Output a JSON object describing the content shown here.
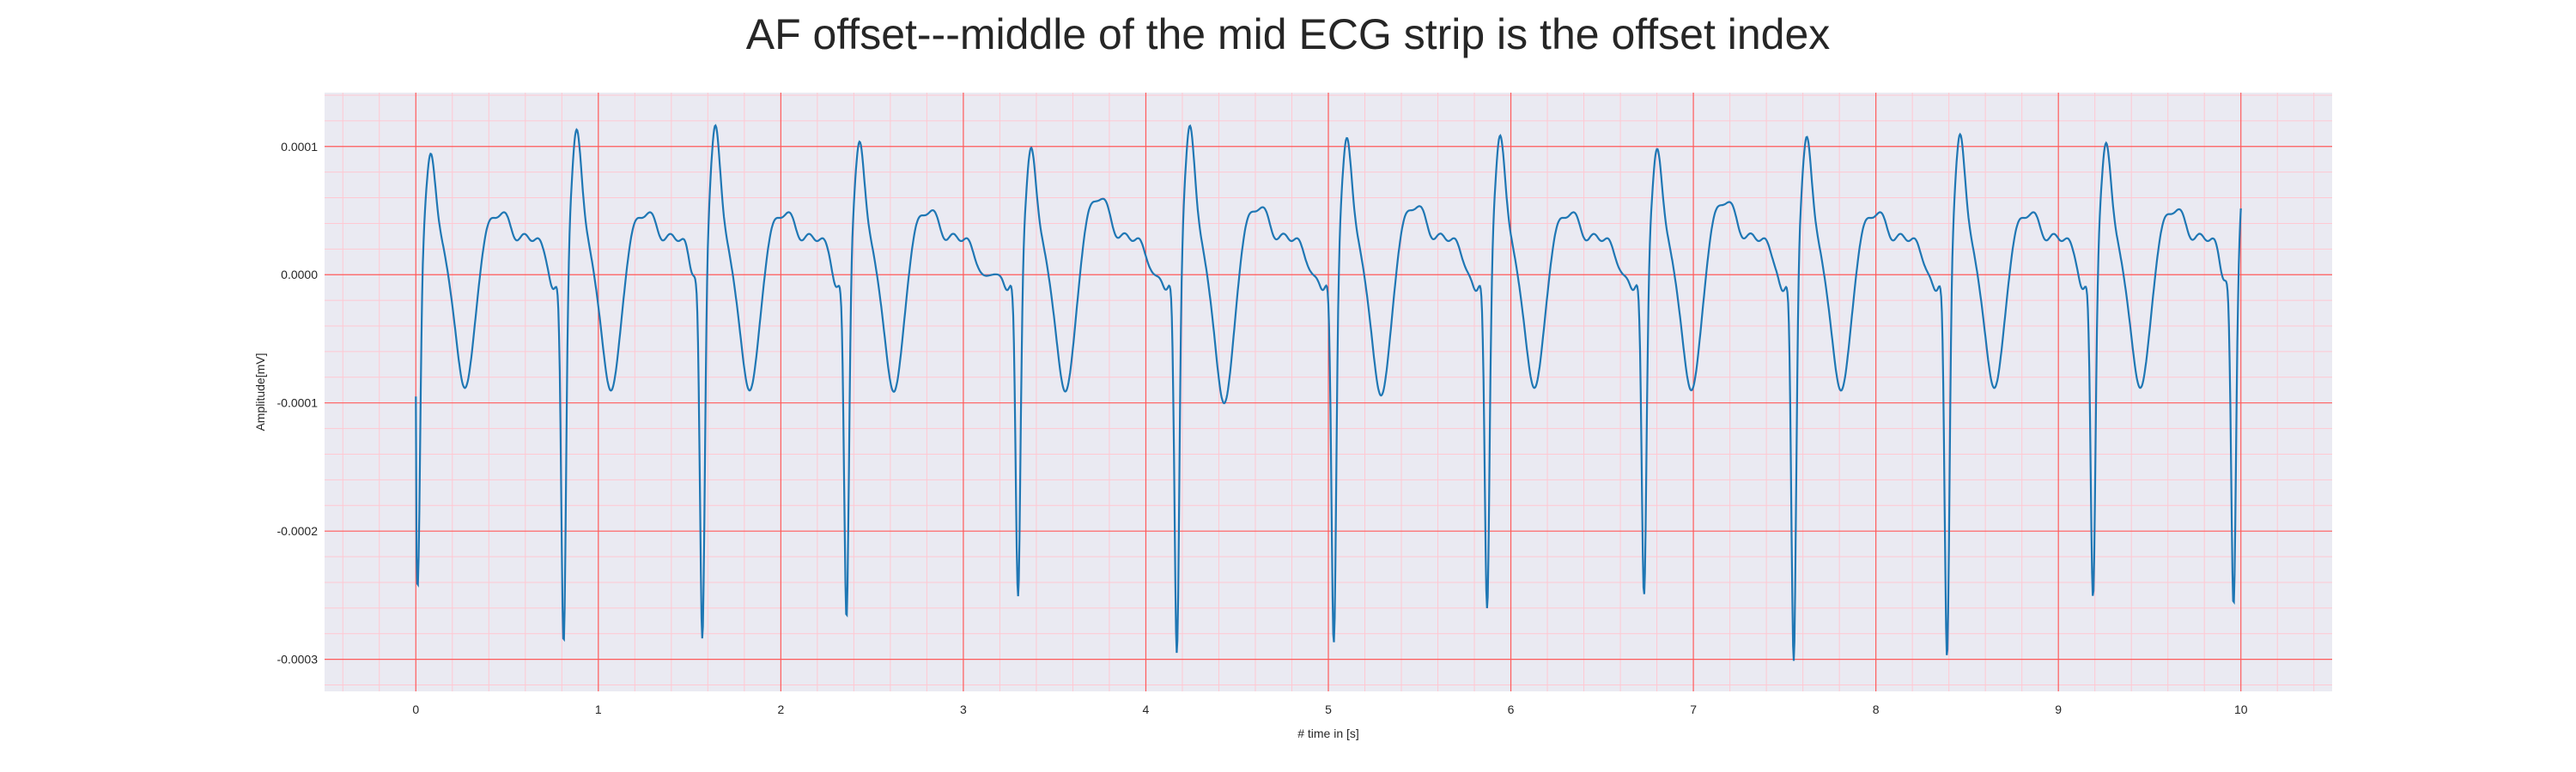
{
  "chart_data": {
    "type": "line",
    "title": "AF offset---middle of the mid ECG strip is the offset index",
    "xlabel": "# time in [s]",
    "ylabel": "Amplitude[mV]",
    "xlim": [
      -0.5,
      10.5
    ],
    "ylim": [
      -0.000325,
      0.000142
    ],
    "x_ticks": [
      0,
      1,
      2,
      3,
      4,
      5,
      6,
      7,
      8,
      9,
      10
    ],
    "x_tick_labels": [
      "0",
      "1",
      "2",
      "3",
      "4",
      "5",
      "6",
      "7",
      "8",
      "9",
      "10"
    ],
    "y_ticks": [
      0.0001,
      0.0,
      -0.0001,
      -0.0002,
      -0.0003
    ],
    "y_tick_labels": [
      "0.0001",
      "0.0000",
      "-0.0001",
      "-0.0002",
      "-0.0003"
    ],
    "grid": true,
    "minor_grid": true,
    "colors": {
      "background": "#eaeaf2",
      "major_grid": "#ff5a5a",
      "minor_grid": "#ffc8d2",
      "line": "#1f77b4"
    },
    "series": [
      {
        "x_start": 0.0,
        "x_end": 10.0,
        "beats": [
          {
            "r": 0.01,
            "s_depth": -0.000248,
            "r_peak": 9.6e-05,
            "t_peak": 5e-05,
            "trough": -9e-05
          },
          {
            "r": 0.81,
            "s_depth": -0.000292,
            "r_peak": 0.000116,
            "t_peak": 5e-05,
            "trough": -9.2e-05
          },
          {
            "r": 1.57,
            "s_depth": -0.000288,
            "r_peak": 0.000119,
            "t_peak": 5e-05,
            "trough": -9.2e-05
          },
          {
            "r": 2.36,
            "s_depth": -0.000272,
            "r_peak": 0.000106,
            "t_peak": 5.2e-05,
            "trough": -9.3e-05
          },
          {
            "r": 3.3,
            "s_depth": -0.000255,
            "r_peak": 0.000101,
            "t_peak": 6.3e-05,
            "trough": -9.3e-05
          },
          {
            "r": 4.17,
            "s_depth": -0.0003,
            "r_peak": 0.000119,
            "t_peak": 5.5e-05,
            "trough": -0.000102
          },
          {
            "r": 5.03,
            "s_depth": -0.000292,
            "r_peak": 0.000109,
            "t_peak": 5.6e-05,
            "trough": -9.6e-05
          },
          {
            "r": 5.87,
            "s_depth": -0.000265,
            "r_peak": 0.000111,
            "t_peak": 5e-05,
            "trough": -9e-05
          },
          {
            "r": 6.73,
            "s_depth": -0.000254,
            "r_peak": 0.0001,
            "t_peak": 6e-05,
            "trough": -9.2e-05
          },
          {
            "r": 7.55,
            "s_depth": -0.000306,
            "r_peak": 0.00011,
            "t_peak": 5e-05,
            "trough": -9.2e-05
          },
          {
            "r": 8.39,
            "s_depth": -0.000303,
            "r_peak": 0.000112,
            "t_peak": 5e-05,
            "trough": -9e-05
          },
          {
            "r": 9.19,
            "s_depth": -0.000256,
            "r_peak": 0.000105,
            "t_peak": 5.3e-05,
            "trough": -9e-05
          },
          {
            "r": 9.96,
            "s_depth": -0.000261,
            "r_peak": 0.0001,
            "t_peak": 5e-05,
            "trough": -9e-05
          }
        ]
      }
    ]
  }
}
